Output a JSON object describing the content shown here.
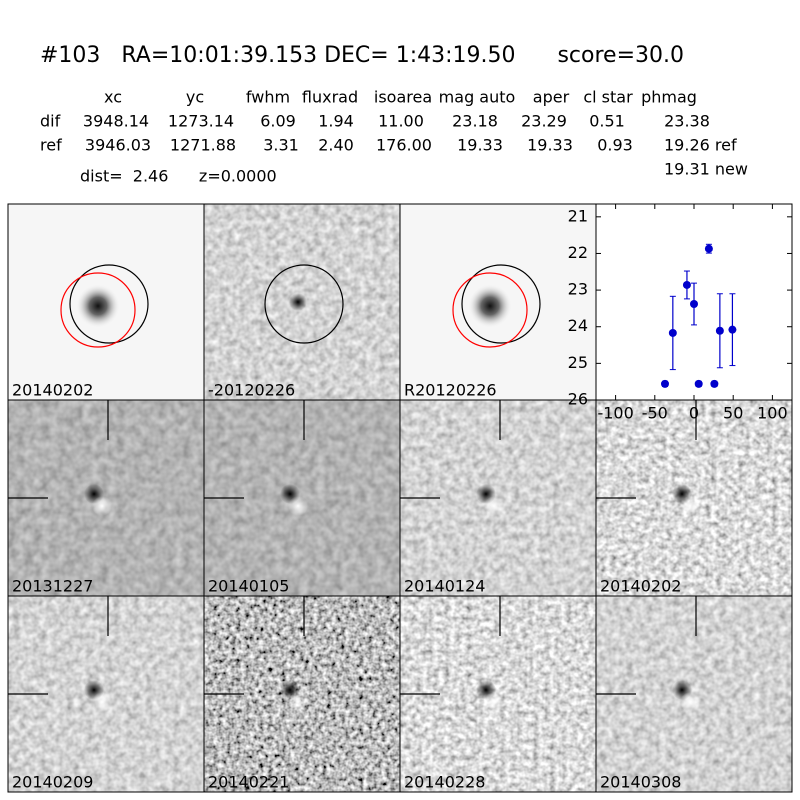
{
  "header": {
    "title": "#103   RA=10:01:39.153 DEC= 1:43:19.50      score=30.0",
    "dist_line": "dist=  2.46      z=0.0000",
    "extra_line": "19.31 new"
  },
  "table": {
    "columns": [
      "xc",
      "yc",
      "fwhm",
      "fluxrad",
      "isoarea",
      "mag auto",
      "aper",
      "cl star",
      "phmag"
    ],
    "rows": [
      [
        "dif",
        "3948.14",
        "1273.14",
        "6.09",
        "1.94",
        "11.00",
        "23.18",
        "23.29",
        "0.51",
        "23.38"
      ],
      [
        "ref",
        "3946.03",
        "1271.88",
        "3.31",
        "2.40",
        "176.00",
        "19.33",
        "19.33",
        "0.93",
        "19.26 ref"
      ]
    ]
  },
  "stamps": [
    {
      "label": "20140202"
    },
    {
      "label": "-20120226"
    },
    {
      "label": "R20120226"
    },
    {
      "label": "20131227"
    },
    {
      "label": "20140105"
    },
    {
      "label": "20140124"
    },
    {
      "label": "20140202",
      "color": "#ff0000"
    },
    {
      "label": "20140209"
    },
    {
      "label": "20140221"
    },
    {
      "label": "20140228"
    },
    {
      "label": "20140308"
    }
  ],
  "chart_data": {
    "type": "scatter",
    "x": [
      -37,
      -27,
      -9,
      0,
      6,
      19,
      26,
      33,
      49
    ],
    "series": [
      {
        "color": "#0000cc",
        "values": [
          25.56,
          24.17,
          22.86,
          23.38,
          25.56,
          21.87,
          25.56,
          24.11,
          24.08
        ],
        "errors": [
          0.07,
          1.0,
          0.38,
          0.57,
          0.07,
          0.12,
          0.07,
          1.01,
          0.98
        ]
      }
    ],
    "xlim": [
      -125,
      125
    ],
    "ylim": [
      26,
      20.65
    ],
    "xticks": [
      -100,
      -50,
      0,
      50,
      100
    ],
    "yticks": [
      21,
      22,
      23,
      24,
      25,
      26
    ]
  }
}
